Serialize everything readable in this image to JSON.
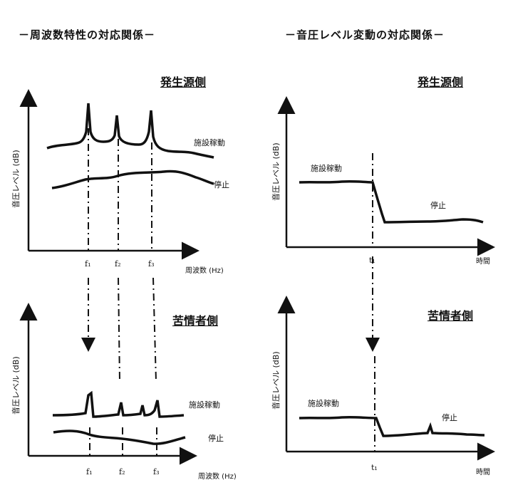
{
  "left": {
    "header": "－周波数特性の対応関係－",
    "top": {
      "side_title": "発生源側",
      "y_label": "音圧レベル (dB)",
      "x_label": "周波数 (Hz)",
      "curve_on": "施設稼動",
      "curve_off": "停止",
      "ticks": [
        "f₁",
        "f₂",
        "f₃"
      ]
    },
    "bottom": {
      "side_title": "苦情者側",
      "y_label": "音圧レベル (dB)",
      "x_label": "周波数 (Hz)",
      "curve_on": "施設稼動",
      "curve_off": "停止",
      "ticks": [
        "f₁",
        "f₂",
        "f₃"
      ]
    }
  },
  "right": {
    "header": "－音圧レベル変動の対応関係－",
    "top": {
      "side_title": "発生源側",
      "y_label": "音圧レベル (dB)",
      "x_label": "時間",
      "curve_on": "施設稼動",
      "curve_off": "停止",
      "tick": "t₁"
    },
    "bottom": {
      "side_title": "苦情者側",
      "y_label": "音圧レベル (dB)",
      "x_label": "時間",
      "curve_on": "施設稼動",
      "curve_off": "停止",
      "tick": "t₁"
    }
  }
}
